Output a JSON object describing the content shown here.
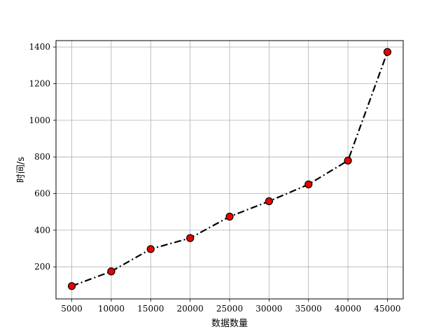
{
  "chart_data": {
    "type": "line",
    "x": [
      5000,
      10000,
      15000,
      20000,
      25000,
      30000,
      35000,
      40000,
      45000
    ],
    "series": [
      {
        "values": [
          95,
          175,
          297,
          357,
          474,
          558,
          650,
          780,
          1373
        ],
        "color": "#000000",
        "marker_color": "#ee0000",
        "line_style": "dash-dot"
      }
    ],
    "xlabel": "数据数量",
    "ylabel": "时间/s",
    "xlim": [
      3000,
      47000
    ],
    "ylim": [
      25,
      1435
    ],
    "xticks": [
      5000,
      10000,
      15000,
      20000,
      25000,
      30000,
      35000,
      40000,
      45000
    ],
    "xtick_labels": [
      "5000",
      "10000",
      "15000",
      "20000",
      "25000",
      "30000",
      "35000",
      "40000",
      "45000"
    ],
    "yticks": [
      200,
      400,
      600,
      800,
      1000,
      1200,
      1400
    ],
    "ytick_labels": [
      "200",
      "400",
      "600",
      "800",
      "1000",
      "1200",
      "1400"
    ],
    "grid": true,
    "colors": {
      "grid": "#b0b0b0",
      "axes": "#000000",
      "marker_edge": "#000000"
    }
  }
}
